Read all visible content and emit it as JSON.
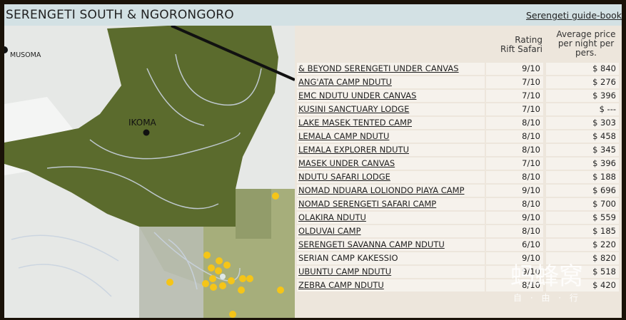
{
  "header": {
    "title": "SERENGETI SOUTH & NGORONGORO",
    "link": "Serengeti guide-book"
  },
  "map": {
    "labels": [
      "MUSOMA",
      "IKOMA"
    ]
  },
  "table": {
    "headers": {
      "rating": "Rating Rift Safari",
      "price": "Average price per night per pers."
    },
    "rows": [
      [
        "& BEYOND SERENGETI UNDER CANVAS",
        "9/10",
        "$ 840"
      ],
      [
        "ANG'ATA CAMP NDUTU",
        "7/10",
        "$ 276"
      ],
      [
        "EMC NDUTU UNDER CANVAS",
        "7/10",
        "$ 396"
      ],
      [
        "KUSINI SANCTUARY LODGE",
        "7/10",
        "$ ---"
      ],
      [
        "LAKE MASEK TENTED CAMP",
        "8/10",
        "$ 303"
      ],
      [
        "LEMALA CAMP NDUTU",
        "8/10",
        "$ 458"
      ],
      [
        "LEMALA EXPLORER NDUTU",
        "8/10",
        "$ 345"
      ],
      [
        "MASEK UNDER CANVAS",
        "7/10",
        "$ 396"
      ],
      [
        "NDUTU SAFARI LODGE",
        "8/10",
        "$ 188"
      ],
      [
        "NOMAD NDUARA LOLIONDO PIAYA CAMP",
        "9/10",
        "$ 696"
      ],
      [
        "NOMAD SERENGETI SAFARI CAMP",
        "8/10",
        "$ 700"
      ],
      [
        "OLAKIRA NDUTU",
        "9/10",
        "$ 559"
      ],
      [
        "OLDUVAI CAMP",
        "8/10",
        "$ 185"
      ],
      [
        "SERENGETI SAVANNA CAMP NDUTU",
        "6/10",
        "$ 220"
      ],
      [
        "SERIAN CAMP KAKESSIO",
        "9/10",
        "$ 820"
      ],
      [
        "UBUNTU CAMP NDUTU",
        "9/10",
        "$ 518"
      ],
      [
        "ZEBRA CAMP NDUTU",
        "8/10",
        "$ 420"
      ]
    ]
  },
  "watermark": {
    "brand": "蚂蜂窝",
    "tagline": "自 · 由 · 行"
  }
}
